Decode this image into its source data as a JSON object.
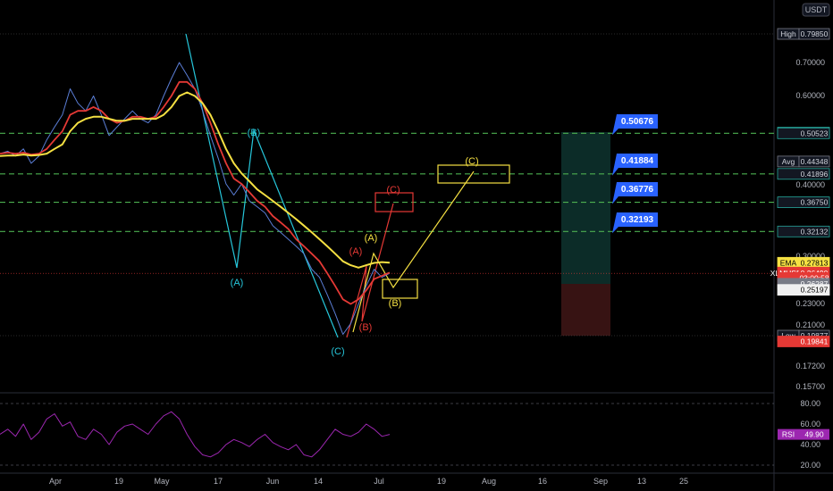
{
  "chart_data": {
    "type": "line",
    "symbol": "XLMUSDT",
    "currency": "USDT",
    "x_ticks": [
      "Apr",
      "19",
      "May",
      "17",
      "Jun",
      "14",
      "Jul",
      "19",
      "Aug",
      "16",
      "Sep",
      "13",
      "25"
    ],
    "price_axis_ticks": [
      "0.70000",
      "0.60000",
      "0.40000",
      "0.30000",
      "0.23000",
      "0.21000",
      "0.17200",
      "0.15700"
    ],
    "rsi_axis_ticks": [
      "80.00",
      "60.00",
      "40.00",
      "20.00"
    ],
    "rsi": {
      "label": "RSI",
      "value": "49.90"
    },
    "badges": [
      {
        "text": "High · 0.79850",
        "price": 0.7985,
        "color": "#131722",
        "border": "#787b86",
        "text_color": "#d1d4dc"
      },
      {
        "text": "0.50676",
        "price": 0.50676,
        "color": "#131722",
        "border": "#26a69a",
        "text_color": "#d1d4dc"
      },
      {
        "text": "0.50523",
        "price": 0.50523,
        "color": "#131722",
        "border": "#26a69a",
        "text_color": "#d1d4dc"
      },
      {
        "text": "Avg · 0.44348",
        "price": 0.44348,
        "color": "#131722",
        "border": "#787b86",
        "text_color": "#d1d4dc"
      },
      {
        "text": "0.41896",
        "price": 0.41896,
        "color": "#131722",
        "border": "#26a69a",
        "text_color": "#d1d4dc"
      },
      {
        "text": "0.36750",
        "price": 0.3675,
        "color": "#131722",
        "border": "#26a69a",
        "text_color": "#d1d4dc"
      },
      {
        "text": "0.32132",
        "price": 0.32132,
        "color": "#131722",
        "border": "#26a69a",
        "text_color": "#d1d4dc"
      },
      {
        "text": "EMA · 0.27813",
        "price": 0.27813,
        "color": "#f5e042",
        "border": "#f5e042",
        "text_color": "#000000"
      },
      {
        "text": "EMA · 0.26591",
        "price": 0.26591,
        "color": "#e53935",
        "border": "#e53935",
        "text_color": "#ffffff"
      },
      {
        "text": "XLMUSDT · 0.26490",
        "price": 0.2649,
        "color": "#e53935",
        "border": "#e53935",
        "text_color": "#ffffff"
      },
      {
        "text": "03:00:58",
        "price": 0.2593,
        "color": "#e53935",
        "border": "#e53935",
        "text_color": "#ffffff"
      },
      {
        "text": "0.26287",
        "price": 0.2525,
        "color": "#787b86",
        "border": "#787b86",
        "text_color": "#ffffff"
      },
      {
        "text": "0.25197",
        "price": 0.2455,
        "color": "#f0f0f0",
        "border": "#f0f0f0",
        "text_color": "#000000"
      },
      {
        "text": "Low · 0.19877",
        "price": 0.19877,
        "color": "#131722",
        "border": "#787b86",
        "text_color": "#d1d4dc"
      },
      {
        "text": "0.19841",
        "price": 0.1935,
        "color": "#e53935",
        "border": "#e53935",
        "text_color": "#ffffff"
      }
    ],
    "target_levels": [
      0.50523,
      0.41896,
      0.3675,
      0.32132
    ],
    "callouts": [
      "0.50676",
      "0.41884",
      "0.36776",
      "0.32193"
    ],
    "wave_labels": [
      {
        "text": "(A)",
        "color": "#26c6da"
      },
      {
        "text": "(B)",
        "color": "#26c6da"
      },
      {
        "text": "(C)",
        "color": "#26c6da"
      },
      {
        "text": "(A)",
        "color": "#f5e042"
      },
      {
        "text": "(B)",
        "color": "#f5e042"
      },
      {
        "text": "(C)",
        "color": "#f5e042"
      },
      {
        "text": "(A)",
        "color": "#e53935"
      },
      {
        "text": "(B)",
        "color": "#e53935"
      },
      {
        "text": "(C)",
        "color": "#e53935"
      }
    ],
    "price_series": [
      0.46,
      0.465,
      0.455,
      0.47,
      0.44,
      0.455,
      0.49,
      0.52,
      0.55,
      0.62,
      0.58,
      0.56,
      0.6,
      0.55,
      0.5,
      0.52,
      0.54,
      0.56,
      0.54,
      0.53,
      0.55,
      0.6,
      0.65,
      0.7,
      0.66,
      0.62,
      0.56,
      0.5,
      0.45,
      0.4,
      0.38,
      0.4,
      0.37,
      0.36,
      0.35,
      0.33,
      0.32,
      0.31,
      0.3,
      0.29,
      0.27,
      0.26,
      0.24,
      0.22,
      0.2,
      0.21,
      0.23,
      0.25,
      0.27,
      0.26,
      0.265
    ],
    "ema_fast": [
      0.46,
      0.462,
      0.46,
      0.462,
      0.458,
      0.46,
      0.47,
      0.49,
      0.51,
      0.55,
      0.56,
      0.56,
      0.57,
      0.56,
      0.54,
      0.53,
      0.535,
      0.545,
      0.545,
      0.54,
      0.545,
      0.57,
      0.6,
      0.64,
      0.64,
      0.62,
      0.58,
      0.53,
      0.48,
      0.44,
      0.41,
      0.4,
      0.385,
      0.37,
      0.36,
      0.345,
      0.335,
      0.325,
      0.31,
      0.3,
      0.29,
      0.28,
      0.265,
      0.25,
      0.235,
      0.23,
      0.235,
      0.245,
      0.258,
      0.262,
      0.26591
    ],
    "ema_slow": [
      0.455,
      0.456,
      0.456,
      0.458,
      0.456,
      0.457,
      0.46,
      0.47,
      0.48,
      0.51,
      0.53,
      0.54,
      0.545,
      0.545,
      0.54,
      0.535,
      0.535,
      0.54,
      0.54,
      0.54,
      0.54,
      0.55,
      0.57,
      0.6,
      0.61,
      0.6,
      0.58,
      0.55,
      0.51,
      0.47,
      0.44,
      0.42,
      0.405,
      0.39,
      0.38,
      0.37,
      0.36,
      0.35,
      0.34,
      0.33,
      0.32,
      0.31,
      0.3,
      0.29,
      0.28,
      0.275,
      0.272,
      0.275,
      0.278,
      0.279,
      0.27813
    ],
    "rsi_series": [
      50,
      55,
      48,
      60,
      45,
      52,
      65,
      70,
      58,
      62,
      48,
      45,
      55,
      50,
      40,
      52,
      58,
      60,
      55,
      50,
      60,
      68,
      72,
      65,
      50,
      38,
      30,
      28,
      32,
      40,
      45,
      42,
      38,
      45,
      50,
      42,
      38,
      35,
      40,
      30,
      28,
      35,
      45,
      55,
      50,
      48,
      52,
      60,
      55,
      48,
      49.9
    ],
    "price_axis": {
      "type": "log",
      "range": [
        0.15,
        0.85
      ]
    },
    "rsi_axis": {
      "range": [
        10,
        90
      ]
    },
    "grid": false
  }
}
